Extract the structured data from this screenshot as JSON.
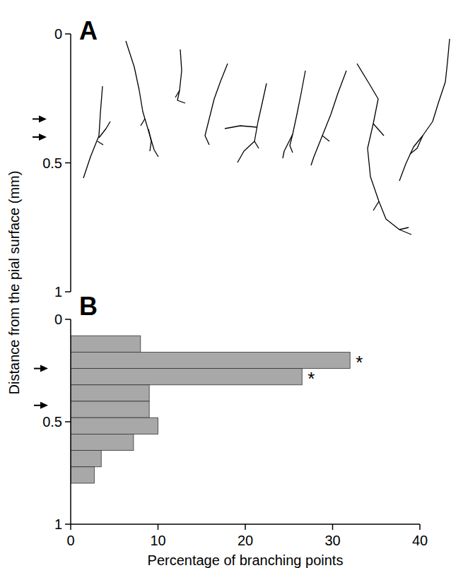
{
  "ylabel": "Distance from the pial surface (mm)",
  "chart_data": [
    {
      "type": "tracing",
      "panel": "A",
      "ylim": [
        0,
        1
      ],
      "yticks": [
        0,
        0.5,
        1
      ],
      "arrows": [
        0.33,
        0.4
      ]
    },
    {
      "type": "histogram",
      "panel": "B",
      "orientation": "horizontal",
      "xlabel": "Percentage of branching points",
      "bins": [
        0.08,
        0.16,
        0.24,
        0.32,
        0.4,
        0.48,
        0.56,
        0.64,
        0.72,
        0.8
      ],
      "values": [
        8,
        32,
        26.5,
        9,
        9,
        10,
        7.2,
        3.5,
        2.7
      ],
      "color": "#a8a8a8",
      "xlim": [
        0,
        40
      ],
      "xticks": [
        0,
        10,
        20,
        30,
        40
      ],
      "ylim": [
        0,
        1
      ],
      "yticks": [
        0,
        0.5,
        1
      ],
      "arrows": [
        0.24,
        0.42
      ],
      "annotations": [
        {
          "text": "*",
          "index": 1
        },
        {
          "text": "*",
          "index": 2
        }
      ]
    }
  ]
}
